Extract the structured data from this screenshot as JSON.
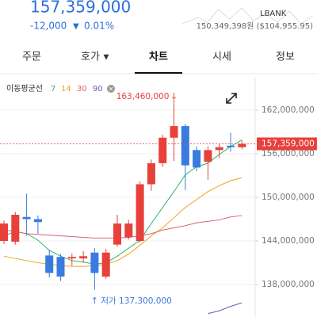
{
  "header": {
    "price": "157,359,000",
    "change": "-12,000",
    "change_pct": "0.01%",
    "exchange": "LBANK",
    "krw_usd": "150,349,398원 ($104,955.95)"
  },
  "tabs": [
    "주문",
    "호가",
    "차트",
    "시세",
    "정보"
  ],
  "legend": {
    "title": "이동평균선"
  },
  "chart_data": {
    "type": "candlestick",
    "up_color": "#e8403a",
    "down_color": "#3a7be0",
    "open": [
      144000000,
      143900000,
      147300000,
      147000000,
      142000000,
      141800000,
      141600000,
      141600000,
      142400000,
      139100000,
      143500000,
      144500000,
      144000000,
      151800000,
      154700000,
      158200000,
      159800000,
      156500000,
      154900000,
      156500000,
      157100000,
      156900000
    ],
    "close": [
      146400000,
      147600000,
      147000000,
      146600000,
      139600000,
      139100000,
      141800000,
      141900000,
      139600000,
      142400000,
      146400000,
      146400000,
      151800000,
      154700000,
      158200000,
      159800000,
      154400000,
      154100000,
      156500000,
      156900000,
      156900000,
      157359000
    ],
    "high": [
      146800000,
      148000000,
      150500000,
      147500000,
      142800000,
      142200000,
      142300000,
      142600000,
      143000000,
      142900000,
      147600000,
      146900000,
      152200000,
      155200000,
      158600000,
      163460000,
      160100000,
      157000000,
      157000000,
      157400000,
      158900000,
      157800000
    ],
    "low": [
      143600000,
      143500000,
      144700000,
      145000000,
      139000000,
      138500000,
      140600000,
      141000000,
      137300000,
      138800000,
      143200000,
      144200000,
      143800000,
      150900000,
      154200000,
      155000000,
      151000000,
      153600000,
      152400000,
      155400000,
      156300000,
      156600000
    ],
    "series": [
      {
        "name": "7",
        "color": "#2fb36b",
        "values": [
          144700000,
          145300000,
          145000000,
          144100000,
          142700000,
          141900000,
          141300000,
          141100000,
          140800000,
          141000000,
          141900000,
          143000000,
          144100000,
          146400000,
          148600000,
          150800000,
          153100000,
          154200000,
          154700000,
          155900000,
          157000000,
          157900000
        ]
      },
      {
        "name": "14",
        "color": "#f0a020",
        "values": [
          141900000,
          141600000,
          141300000,
          141000000,
          140800000,
          140600000,
          140500000,
          140500000,
          140600000,
          140800000,
          141300000,
          142200000,
          143400000,
          144700000,
          145800000,
          147200000,
          148600000,
          149700000,
          150800000,
          151600000,
          152300000,
          152700000
        ]
      },
      {
        "name": "30",
        "color": "#e06070",
        "values": [
          145500000,
          145300000,
          145000000,
          144900000,
          144800000,
          144700000,
          144600000,
          144500000,
          144400000,
          144400000,
          144400000,
          144500000,
          144700000,
          145000000,
          145500000,
          145800000,
          146100000,
          146500000,
          146700000,
          146900000,
          147300000,
          147500000
        ]
      },
      {
        "name": "90",
        "color": "#7a4fc0",
        "values": [
          null,
          null,
          null,
          null,
          null,
          null,
          null,
          null,
          null,
          null,
          null,
          null,
          null,
          null,
          null,
          null,
          null,
          null,
          134000000,
          134400000,
          135000000,
          135500000
        ]
      }
    ],
    "ylim": [
      133540000,
      166460000
    ],
    "yticks": [
      {
        "value": 138000000,
        "label": "138,000,000"
      },
      {
        "value": 144000000,
        "label": "144,000,000"
      },
      {
        "value": 150000000,
        "label": "150,000,000"
      },
      {
        "value": 156000000,
        "label": "156,000,000"
      },
      {
        "value": 162000000,
        "label": "162,000,000"
      }
    ],
    "last_price": {
      "value": 157359000,
      "label": "157,359,000"
    },
    "high_annotation": {
      "value": 163460000,
      "label": "163,460,000"
    },
    "low_annotation": {
      "value": 137300000,
      "label": "저가 137,300,000"
    }
  }
}
